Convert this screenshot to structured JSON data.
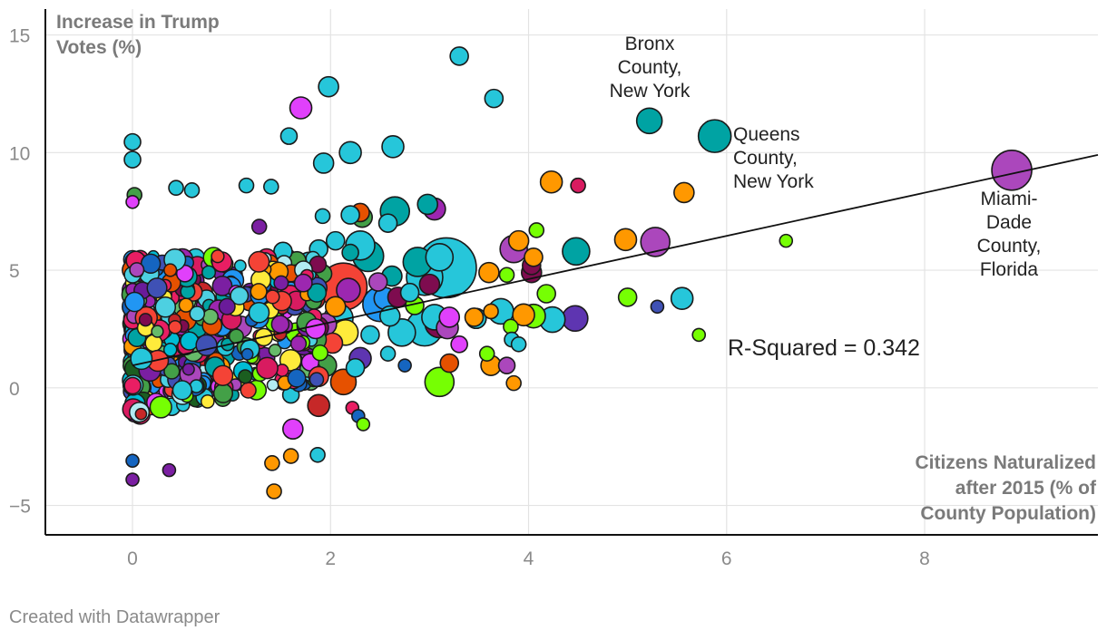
{
  "chart_data": {
    "type": "scatter",
    "y_ticks": [
      15,
      10,
      5,
      0,
      -5
    ],
    "y_tick_labels": [
      "15",
      "10",
      "5",
      "0",
      "−5"
    ],
    "x_ticks": [
      0,
      2,
      4,
      6,
      8
    ],
    "x_tick_labels": [
      "0",
      "2",
      "4",
      "6",
      "8"
    ],
    "xlim": [
      -0.88,
      9.75
    ],
    "ylim": [
      -6.25,
      16.1
    ],
    "grid": true,
    "ylabel": [
      "Increase in Trump",
      "Votes (%)"
    ],
    "xlabel": [
      "Citizens Naturalized",
      "after 2015 (% of",
      "County Population)"
    ],
    "trendline": {
      "x0": 0,
      "y0": 0.95,
      "x1": 9.75,
      "y1": 9.9
    },
    "r_squared_label": "R-Squared = 0.342",
    "annotations": [
      {
        "lines": [
          "Bronx",
          "County,",
          "New York"
        ]
      },
      {
        "lines": [
          "Queens",
          "County,",
          "New York"
        ]
      },
      {
        "lines": [
          "Miami-",
          "Dade",
          "County,",
          "Florida"
        ]
      }
    ],
    "palette": [
      "#00bcd4",
      "#4dd0e1",
      "#9c27b0",
      "#7b1fa2",
      "#e040fb",
      "#e91e63",
      "#2196f3",
      "#1565c0",
      "#00a3a3",
      "#43a047",
      "#76ff03",
      "#ff9800",
      "#e65100",
      "#f44336",
      "#7e0c4f",
      "#1b5e20",
      "#6a1b9a",
      "#3f51b5",
      "#c62828",
      "#ffeb3b",
      "#26c6da",
      "#ab47bc",
      "#66bb6a",
      "#b2ebf2",
      "#d81b60"
    ],
    "points": [
      {
        "x": 3.3,
        "y": 14.1,
        "s": 10,
        "c": "#26c6da"
      },
      {
        "x": 1.98,
        "y": 12.8,
        "s": 11,
        "c": "#26c6da"
      },
      {
        "x": 3.65,
        "y": 12.3,
        "s": 10,
        "c": "#26c6da"
      },
      {
        "x": 1.7,
        "y": 11.9,
        "s": 12,
        "c": "#e040fb"
      },
      {
        "x": 5.22,
        "y": 11.35,
        "s": 14,
        "c": "#00a3a3"
      },
      {
        "x": 5.88,
        "y": 10.7,
        "s": 18,
        "c": "#00a3a3"
      },
      {
        "x": 8.88,
        "y": 9.25,
        "s": 22,
        "c": "#ab47bc"
      },
      {
        "x": 0,
        "y": 10.45,
        "s": 9,
        "c": "#26c6da"
      },
      {
        "x": 0,
        "y": 9.7,
        "s": 9,
        "c": "#26c6da"
      },
      {
        "x": 1.58,
        "y": 10.7,
        "s": 9,
        "c": "#26c6da"
      },
      {
        "x": 2.2,
        "y": 10.0,
        "s": 12,
        "c": "#26c6da"
      },
      {
        "x": 2.63,
        "y": 10.25,
        "s": 12,
        "c": "#26c6da"
      },
      {
        "x": 1.93,
        "y": 9.55,
        "s": 11,
        "c": "#26c6da"
      },
      {
        "x": 4.23,
        "y": 8.75,
        "s": 12,
        "c": "#ff9800"
      },
      {
        "x": 4.5,
        "y": 8.6,
        "s": 8,
        "c": "#d81b60"
      },
      {
        "x": 5.57,
        "y": 8.3,
        "s": 11,
        "c": "#ff9800"
      },
      {
        "x": 1.15,
        "y": 8.6,
        "s": 8,
        "c": "#26c6da"
      },
      {
        "x": 1.4,
        "y": 8.55,
        "s": 8,
        "c": "#26c6da"
      },
      {
        "x": 0.44,
        "y": 8.5,
        "s": 8,
        "c": "#26c6da"
      },
      {
        "x": 0.6,
        "y": 8.4,
        "s": 8,
        "c": "#26c6da"
      },
      {
        "x": 0.02,
        "y": 8.2,
        "s": 8,
        "c": "#43a047"
      },
      {
        "x": 0,
        "y": 7.9,
        "s": 7,
        "c": "#e040fb"
      },
      {
        "x": 2.65,
        "y": 7.5,
        "s": 16,
        "c": "#00a3a3"
      },
      {
        "x": 2.98,
        "y": 7.8,
        "s": 11,
        "c": "#00a3a3"
      },
      {
        "x": 3.05,
        "y": 7.6,
        "s": 12,
        "c": "#9c27b0"
      },
      {
        "x": 2.3,
        "y": 7.45,
        "s": 10,
        "c": "#e65100"
      },
      {
        "x": 2.32,
        "y": 7.25,
        "s": 11,
        "c": "#43a047"
      },
      {
        "x": 2.2,
        "y": 7.35,
        "s": 10,
        "c": "#26c6da"
      },
      {
        "x": 1.92,
        "y": 7.3,
        "s": 8,
        "c": "#26c6da"
      },
      {
        "x": 2.58,
        "y": 7.0,
        "s": 10,
        "c": "#26c6da"
      },
      {
        "x": 4.08,
        "y": 6.7,
        "s": 8,
        "c": "#76ff03"
      },
      {
        "x": 2.3,
        "y": 6.05,
        "s": 16,
        "c": "#26c6da"
      },
      {
        "x": 2.38,
        "y": 5.6,
        "s": 17,
        "c": "#00a3a3"
      },
      {
        "x": 3.17,
        "y": 5.1,
        "s": 33,
        "c": "#26c6da"
      },
      {
        "x": 3.1,
        "y": 5.55,
        "s": 15,
        "c": "#26c6da"
      },
      {
        "x": 2.88,
        "y": 5.35,
        "s": 16,
        "c": "#00a3a3"
      },
      {
        "x": 2.95,
        "y": 4.7,
        "s": 20,
        "c": "#26c6da"
      },
      {
        "x": 2.13,
        "y": 4.3,
        "s": 26,
        "c": "#f44336"
      },
      {
        "x": 2.18,
        "y": 4.15,
        "s": 13,
        "c": "#9c27b0"
      },
      {
        "x": 2.5,
        "y": 3.55,
        "s": 19,
        "c": "#2196f3"
      },
      {
        "x": 2.08,
        "y": 2.95,
        "s": 16,
        "c": "#26c6da"
      },
      {
        "x": 2.72,
        "y": 2.35,
        "s": 15,
        "c": "#26c6da"
      },
      {
        "x": 2.95,
        "y": 2.55,
        "s": 20,
        "c": "#26c6da"
      },
      {
        "x": 3.1,
        "y": 2.75,
        "s": 16,
        "c": "#7e0c4f"
      },
      {
        "x": 3.0,
        "y": 4.4,
        "s": 11,
        "c": "#7e0c4f"
      },
      {
        "x": 3.85,
        "y": 5.9,
        "s": 15,
        "c": "#ab47bc"
      },
      {
        "x": 3.9,
        "y": 6.25,
        "s": 11,
        "c": "#ff9800"
      },
      {
        "x": 4.03,
        "y": 5.2,
        "s": 10,
        "c": "#7e0c4f"
      },
      {
        "x": 4.03,
        "y": 4.9,
        "s": 11,
        "c": "#7e0c4f"
      },
      {
        "x": 3.6,
        "y": 4.9,
        "s": 11,
        "c": "#ff9800"
      },
      {
        "x": 4.05,
        "y": 5.55,
        "s": 10,
        "c": "#ff9800"
      },
      {
        "x": 4.48,
        "y": 5.8,
        "s": 15,
        "c": "#00a3a3"
      },
      {
        "x": 4.98,
        "y": 6.3,
        "s": 12,
        "c": "#ff9800"
      },
      {
        "x": 5.28,
        "y": 6.2,
        "s": 16,
        "c": "#ab47bc"
      },
      {
        "x": 6.6,
        "y": 6.25,
        "s": 7,
        "c": "#76ff03"
      },
      {
        "x": 3.78,
        "y": 4.8,
        "s": 8,
        "c": "#76ff03"
      },
      {
        "x": 4.18,
        "y": 4.0,
        "s": 10,
        "c": "#76ff03"
      },
      {
        "x": 4.47,
        "y": 2.95,
        "s": 14,
        "c": "#5e35b1"
      },
      {
        "x": 4.05,
        "y": 3.05,
        "s": 13,
        "c": "#76ff03"
      },
      {
        "x": 3.72,
        "y": 3.25,
        "s": 14,
        "c": "#26c6da"
      },
      {
        "x": 3.95,
        "y": 3.1,
        "s": 12,
        "c": "#ff9800"
      },
      {
        "x": 4.24,
        "y": 2.9,
        "s": 14,
        "c": "#26c6da"
      },
      {
        "x": 3.47,
        "y": 2.95,
        "s": 11,
        "c": "#26c6da"
      },
      {
        "x": 3.47,
        "y": 2.95,
        "s": 11,
        "c": "#26c6da"
      },
      {
        "x": 3.82,
        "y": 2.6,
        "s": 8,
        "c": "#76ff03"
      },
      {
        "x": 3.83,
        "y": 2.05,
        "s": 8,
        "c": "#26c6da"
      },
      {
        "x": 3.9,
        "y": 1.85,
        "s": 8,
        "c": "#26c6da"
      },
      {
        "x": 3.62,
        "y": 3.25,
        "s": 8,
        "c": "#ff9800"
      },
      {
        "x": 5.0,
        "y": 3.85,
        "s": 10,
        "c": "#76ff03"
      },
      {
        "x": 5.3,
        "y": 3.45,
        "s": 7,
        "c": "#3f51b5"
      },
      {
        "x": 5.55,
        "y": 3.8,
        "s": 12,
        "c": "#26c6da"
      },
      {
        "x": 5.72,
        "y": 2.25,
        "s": 7,
        "c": "#76ff03"
      },
      {
        "x": 3.1,
        "y": 0.25,
        "s": 16,
        "c": "#76ff03"
      },
      {
        "x": 3.2,
        "y": 1.05,
        "s": 10,
        "c": "#e65100"
      },
      {
        "x": 3.62,
        "y": 0.95,
        "s": 11,
        "c": "#ff9800"
      },
      {
        "x": 3.78,
        "y": 0.95,
        "s": 9,
        "c": "#ab47bc"
      },
      {
        "x": 3.85,
        "y": 0.2,
        "s": 8,
        "c": "#ff9800"
      },
      {
        "x": 3.58,
        "y": 1.45,
        "s": 8,
        "c": "#76ff03"
      },
      {
        "x": 2.58,
        "y": 1.45,
        "s": 8,
        "c": "#26c6da"
      },
      {
        "x": 2.75,
        "y": 0.95,
        "s": 7,
        "c": "#1565c0"
      },
      {
        "x": 3.3,
        "y": 1.85,
        "s": 9,
        "c": "#e040fb"
      },
      {
        "x": 1.88,
        "y": -0.75,
        "s": 12,
        "c": "#c62828"
      },
      {
        "x": 1.87,
        "y": -2.85,
        "s": 8,
        "c": "#26c6da"
      },
      {
        "x": 2.22,
        "y": -0.85,
        "s": 7,
        "c": "#e91e63"
      },
      {
        "x": 2.28,
        "y": -1.2,
        "s": 7,
        "c": "#1565c0"
      },
      {
        "x": 2.33,
        "y": -1.55,
        "s": 7,
        "c": "#76ff03"
      },
      {
        "x": 1.43,
        "y": -4.4,
        "s": 8,
        "c": "#ff9800"
      },
      {
        "x": 1.41,
        "y": -3.2,
        "s": 8,
        "c": "#ff9800"
      },
      {
        "x": 1.6,
        "y": -2.9,
        "s": 8,
        "c": "#ff9800"
      },
      {
        "x": 1.62,
        "y": -1.75,
        "s": 11,
        "c": "#e040fb"
      },
      {
        "x": 0.37,
        "y": -3.5,
        "s": 7,
        "c": "#7b1fa2"
      },
      {
        "x": 0,
        "y": -3.9,
        "s": 7,
        "c": "#7b1fa2"
      },
      {
        "x": 0,
        "y": -3.1,
        "s": 7,
        "c": "#1565c0"
      },
      {
        "x": 2.13,
        "y": 0.25,
        "s": 14,
        "c": "#e65100"
      },
      {
        "x": 1.95,
        "y": 0.95,
        "s": 12,
        "c": "#43a047"
      },
      {
        "x": 2.02,
        "y": 1.9,
        "s": 11,
        "c": "#f44336"
      },
      {
        "x": 1.78,
        "y": 5.3,
        "s": 12,
        "c": "#26c6da"
      },
      {
        "x": 1.66,
        "y": 5.4,
        "s": 10,
        "c": "#43a047"
      },
      {
        "x": 1.88,
        "y": 5.9,
        "s": 10,
        "c": "#26c6da"
      },
      {
        "x": 2.05,
        "y": 6.25,
        "s": 10,
        "c": "#26c6da"
      },
      {
        "x": 2.2,
        "y": 5.75,
        "s": 9,
        "c": "#00a3a3"
      },
      {
        "x": 1.52,
        "y": 5.8,
        "s": 10,
        "c": "#26c6da"
      },
      {
        "x": 1.28,
        "y": 6.85,
        "s": 8,
        "c": "#7b1fa2"
      },
      {
        "x": 1.6,
        "y": 4.4,
        "s": 14,
        "c": "#9c27b0"
      },
      {
        "x": 1.55,
        "y": 5.5,
        "s": 11,
        "c": "#7e0c4f"
      },
      {
        "x": 1.75,
        "y": 4.5,
        "s": 11,
        "c": "#26c6da"
      },
      {
        "x": 1.92,
        "y": 4.85,
        "s": 10,
        "c": "#43a047"
      },
      {
        "x": 2.48,
        "y": 4.5,
        "s": 10,
        "c": "#ab47bc"
      },
      {
        "x": 2.62,
        "y": 4.75,
        "s": 11,
        "c": "#00a3a3"
      },
      {
        "x": 2.6,
        "y": 3.05,
        "s": 11,
        "c": "#26c6da"
      },
      {
        "x": 2.55,
        "y": 3.8,
        "s": 12,
        "c": "#2196f3"
      },
      {
        "x": 2.68,
        "y": 3.85,
        "s": 11,
        "c": "#7e0c4f"
      },
      {
        "x": 2.15,
        "y": 2.35,
        "s": 14,
        "c": "#ffeb3b"
      },
      {
        "x": 2.3,
        "y": 1.25,
        "s": 12,
        "c": "#5e35b1"
      },
      {
        "x": 2.05,
        "y": 3.45,
        "s": 11,
        "c": "#ff9800"
      },
      {
        "x": 1.95,
        "y": 2.7,
        "s": 12,
        "c": "#ab47bc"
      },
      {
        "x": 2.25,
        "y": 0.85,
        "s": 10,
        "c": "#26c6da"
      },
      {
        "x": 1.8,
        "y": 1.55,
        "s": 12,
        "c": "#ab47bc"
      },
      {
        "x": 2.4,
        "y": 2.25,
        "s": 10,
        "c": "#26c6da"
      },
      {
        "x": 2.85,
        "y": 3.5,
        "s": 10,
        "c": "#76ff03"
      },
      {
        "x": 2.8,
        "y": 4.05,
        "s": 10,
        "c": "#26c6da"
      },
      {
        "x": 3.05,
        "y": 3.0,
        "s": 14,
        "c": "#26c6da"
      },
      {
        "x": 3.2,
        "y": 3.0,
        "s": 11,
        "c": "#e040fb"
      },
      {
        "x": 3.18,
        "y": 2.55,
        "s": 12,
        "c": "#ab47bc"
      },
      {
        "x": 3.45,
        "y": 3.0,
        "s": 10,
        "c": "#ff9800"
      },
      {
        "x": 1.8,
        "y": 0.25,
        "s": 9,
        "c": "#66bb6a"
      },
      {
        "x": 1.6,
        "y": -0.3,
        "s": 9,
        "c": "#26c6da"
      },
      {
        "x": 1.65,
        "y": 0.75,
        "s": 11,
        "c": "#ab47bc"
      }
    ]
  },
  "footer": {
    "credit": "Created with Datawrapper"
  }
}
